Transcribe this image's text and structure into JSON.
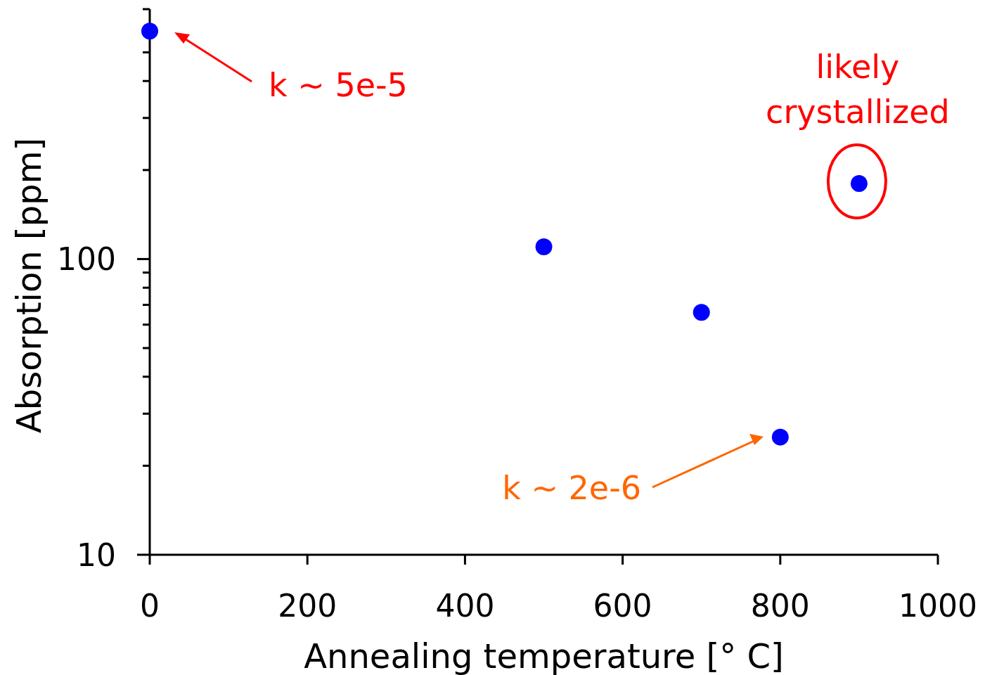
{
  "chart_data": {
    "type": "scatter",
    "xlabel": "Annealing temperature [° C]",
    "ylabel": "Absorption [ppm]",
    "x": [
      0,
      500,
      700,
      800,
      900
    ],
    "values": [
      590,
      110,
      66,
      25,
      180
    ],
    "color": "#0000ff",
    "marker": "circle",
    "log": "y",
    "xlim": [
      0,
      1000
    ],
    "xticks": [
      0,
      200,
      400,
      600,
      800,
      1000
    ],
    "ylim": [
      10,
      700
    ],
    "yticks": [
      10,
      {
        "value": 20,
        "label": null
      },
      {
        "value": 30,
        "label": null
      },
      {
        "value": 40,
        "label": null
      },
      {
        "value": 50,
        "label": null
      },
      {
        "value": 60,
        "label": null
      },
      {
        "value": 70,
        "label": null
      },
      {
        "value": 80,
        "label": null
      },
      {
        "value": 90,
        "label": null
      },
      100,
      {
        "value": 200,
        "label": null
      },
      {
        "value": 300,
        "label": null
      },
      {
        "value": 400,
        "label": null
      },
      {
        "value": 500,
        "label": null
      },
      {
        "value": 600,
        "label": null
      },
      {
        "value": 700,
        "label": null
      }
    ],
    "grid": false,
    "annotations": [
      "k ~ 5e-5",
      "k ~ 2e-6",
      {
        "text": "likely crystallized",
        "x": 900,
        "y": 180
      }
    ]
  }
}
